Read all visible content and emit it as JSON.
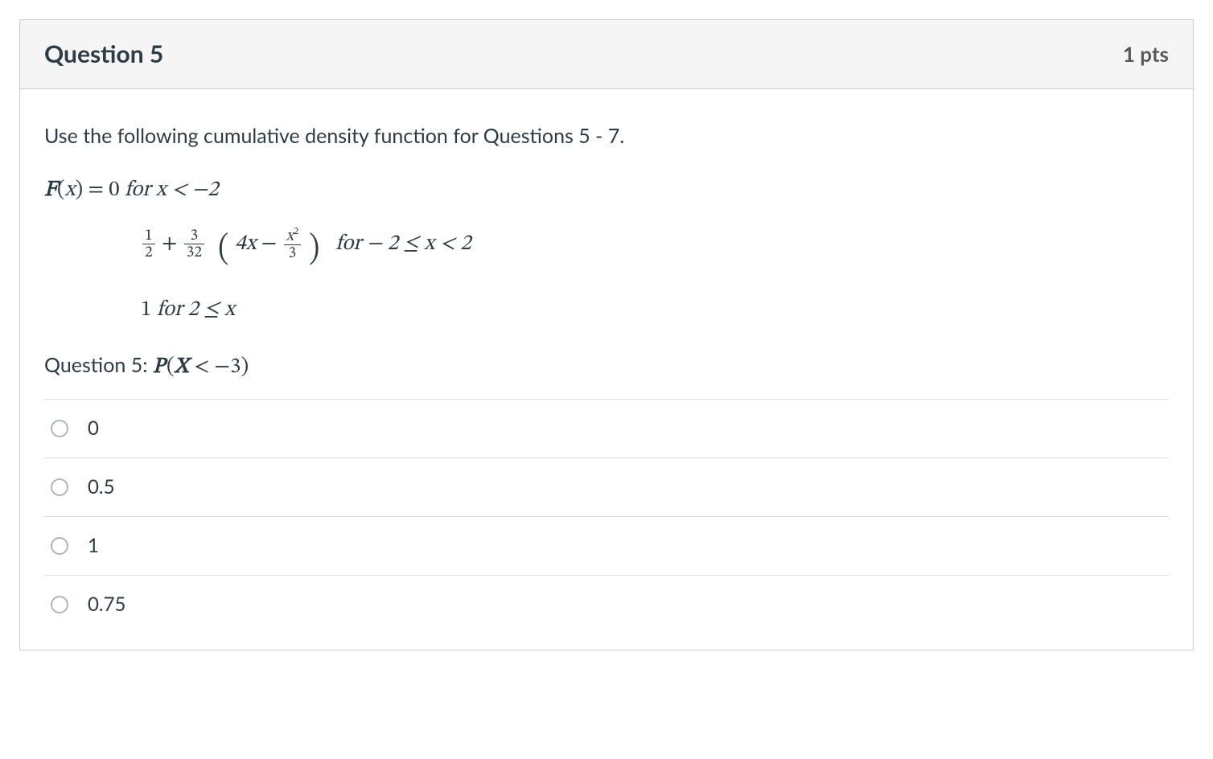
{
  "header": {
    "title": "Question 5",
    "points": "1 pts"
  },
  "body": {
    "intro": "Use the following cumulative density function for Questions 5 - 7.",
    "eq1": {
      "F": "F",
      "open": "(",
      "x": "x",
      "close": ")",
      "eq": " = 0 ",
      "for": "for",
      "cond": " x < −2"
    },
    "eq2": {
      "half_num": "1",
      "half_den": "2",
      "plus": " + ",
      "three32_num": "3",
      "three32_den": "32",
      "lparen": "(",
      "fourx": "4x",
      "minus": " − ",
      "frac_xsq_num": "x",
      "frac_xsq_exp": "2",
      "frac_xsq_den": "3",
      "rparen": ")",
      "for": " for",
      "cond": " − 2 ≤ x < 2"
    },
    "eq3": {
      "one": "1 ",
      "for": "for",
      "cond": " 2 ≤ x"
    },
    "q5": {
      "prefix": "Question 5: ",
      "P": "P",
      "open": "(",
      "X": "X",
      "rel": " < −3",
      "close": ")"
    }
  },
  "answers": [
    {
      "label": "0"
    },
    {
      "label": "0.5"
    },
    {
      "label": "1"
    },
    {
      "label": "0.75"
    }
  ],
  "style": {
    "card_border": "#c7cdd1",
    "header_bg": "#f5f5f5",
    "text_color": "#2d3b45",
    "points_color": "#595959",
    "divider_color": "#dddddd",
    "radio_border": "#aeb5ba"
  }
}
